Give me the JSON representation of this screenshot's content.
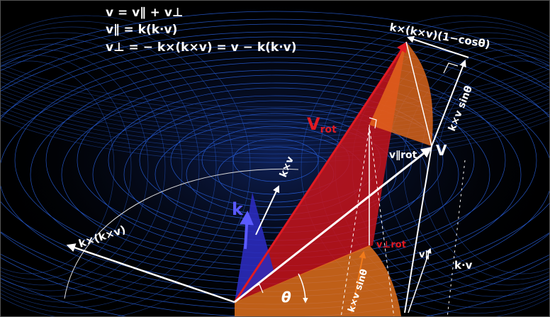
{
  "equations": {
    "line1": "v = v∥ + v⊥",
    "line2": "v∥ = k(k·v)",
    "line3": "v⊥ = − k×(k×v) = v − k(k·v)"
  },
  "labels": {
    "kxkxv_cos": "k×(k×v)(1−cosθ)",
    "kxv_sin_right": "k×v sinθ",
    "v_rot": "V",
    "v_rot_sub": "rot",
    "v": "V",
    "v_par_rot": "v∥rot",
    "kxv": "k×v",
    "k": "k",
    "kxkxv": "k×(k×v)",
    "v_perp_rot": "v⊥rot",
    "v_par": "v∥",
    "kdotv": "k·v",
    "theta": "θ",
    "kxv_sin_bottom": "k×v sinθ"
  },
  "colors": {
    "background": "#000000",
    "mesh": "#2f6fff",
    "red": "#e01a22",
    "orange": "#f07a1a",
    "blue": "#3b3bd0",
    "white": "#ffffff"
  }
}
